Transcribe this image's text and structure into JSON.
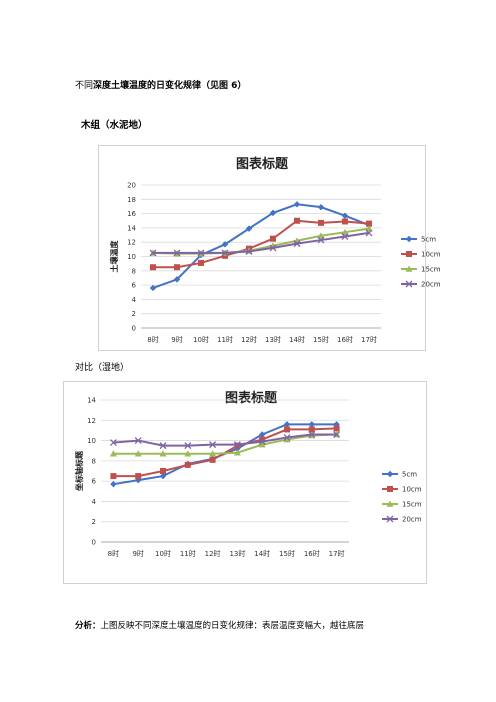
{
  "intro": {
    "prefix": "不同",
    "bold": "深度土壤温度的日变化规律（见图 6）"
  },
  "section1": {
    "label": "木组（水泥地）"
  },
  "section2": {
    "label": "对比（湿地）"
  },
  "analysis": {
    "bold": "分析：",
    "text": "上图反映不同深度土壤温度的日变化规律：表层温度变幅大，越往底层"
  },
  "colors": {
    "5cm": "#4472C4",
    "10cm": "#C0504D",
    "15cm": "#9BBB59",
    "20cm": "#8064A2"
  },
  "chart_data": [
    {
      "type": "line",
      "title": "图表标题",
      "ylabel": "土壤温度",
      "xlabel": "",
      "categories": [
        "8时",
        "9时",
        "10时",
        "11时",
        "12时",
        "13时",
        "14时",
        "15时",
        "16时",
        "17时"
      ],
      "ylim": [
        0,
        20
      ],
      "yticks": [
        0,
        2,
        4,
        6,
        8,
        10,
        12,
        14,
        16,
        18,
        20
      ],
      "grid": true,
      "legend_position": "right",
      "series": [
        {
          "name": "5cm",
          "marker": "diamond",
          "values": [
            5.6,
            6.8,
            10.2,
            11.7,
            13.9,
            16.1,
            17.3,
            16.9,
            15.7,
            14.4
          ]
        },
        {
          "name": "10cm",
          "marker": "square",
          "values": [
            8.5,
            8.5,
            9.1,
            10.1,
            11.1,
            12.5,
            15.0,
            14.7,
            14.9,
            14.6
          ]
        },
        {
          "name": "15cm",
          "marker": "triangle",
          "values": [
            10.5,
            10.4,
            10.4,
            10.5,
            10.8,
            11.5,
            12.2,
            12.9,
            13.4,
            13.9
          ]
        },
        {
          "name": "20cm",
          "marker": "x",
          "values": [
            10.5,
            10.5,
            10.5,
            10.5,
            10.7,
            11.2,
            11.8,
            12.3,
            12.8,
            13.3
          ]
        }
      ]
    },
    {
      "type": "line",
      "title": "图表标题",
      "ylabel": "坐标轴标题",
      "xlabel": "",
      "categories": [
        "8时",
        "9时",
        "10时",
        "11时",
        "12时",
        "13时",
        "14时",
        "15时",
        "16时",
        "17时"
      ],
      "ylim": [
        0,
        14
      ],
      "yticks": [
        0,
        2,
        4,
        6,
        8,
        10,
        12,
        14
      ],
      "grid": true,
      "legend_position": "right",
      "series": [
        {
          "name": "5cm",
          "marker": "diamond",
          "values": [
            5.7,
            6.1,
            6.5,
            7.7,
            8.2,
            9.2,
            10.6,
            11.6,
            11.6,
            11.6
          ]
        },
        {
          "name": "10cm",
          "marker": "square",
          "values": [
            6.5,
            6.5,
            7.0,
            7.6,
            8.1,
            9.5,
            10.1,
            11.1,
            11.1,
            11.2
          ]
        },
        {
          "name": "15cm",
          "marker": "triangle",
          "values": [
            8.7,
            8.7,
            8.7,
            8.7,
            8.7,
            8.8,
            9.6,
            10.1,
            10.5,
            10.6
          ]
        },
        {
          "name": "20cm",
          "marker": "x",
          "values": [
            9.8,
            10.0,
            9.5,
            9.5,
            9.6,
            9.6,
            9.9,
            10.3,
            10.6,
            10.6
          ]
        }
      ]
    }
  ]
}
